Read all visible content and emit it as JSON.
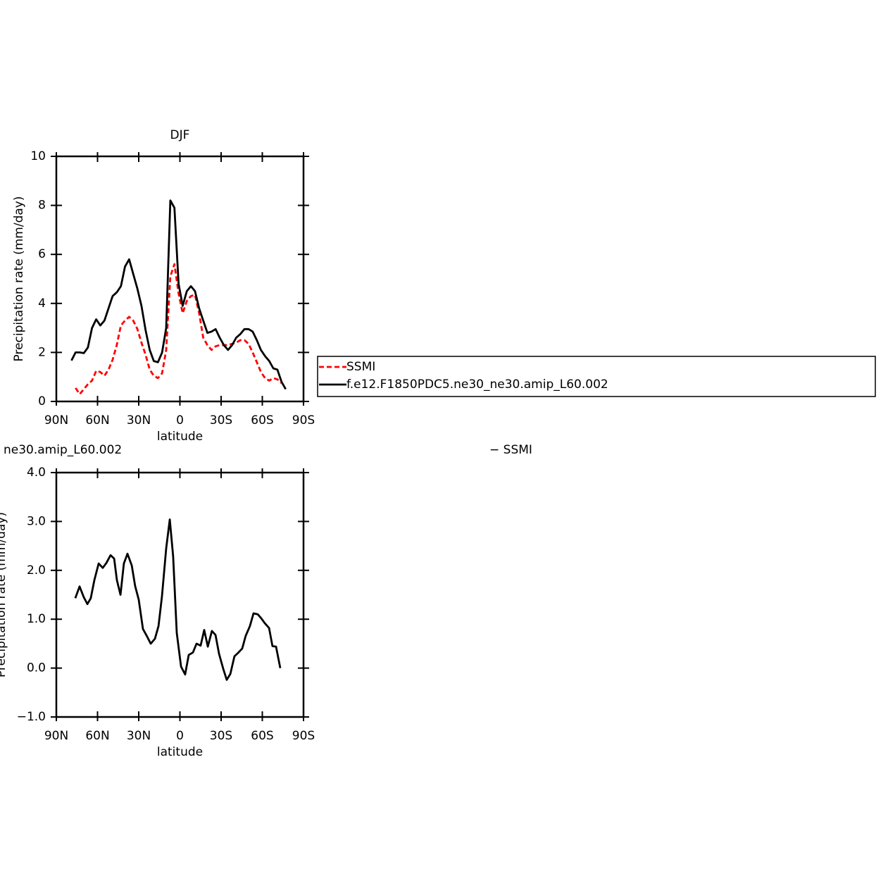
{
  "chart_data": [
    {
      "type": "line",
      "title": "DJF",
      "x_label": "latitude",
      "y_label": "Precipitation rate (mm/day)",
      "xlim": [
        90,
        -90
      ],
      "xticks": [
        {
          "value": 90,
          "label": "90N"
        },
        {
          "value": 60,
          "label": "60N"
        },
        {
          "value": 30,
          "label": "30N"
        },
        0,
        {
          "value": -30,
          "label": "30S"
        },
        {
          "value": -60,
          "label": "60S"
        },
        {
          "value": -90,
          "label": "90S"
        }
      ],
      "ylim": [
        0,
        10
      ],
      "yticks": [
        0,
        2,
        4,
        6,
        8,
        10
      ],
      "x": [
        79,
        76,
        73,
        70,
        67,
        64,
        61,
        58,
        55,
        52,
        49,
        46,
        43,
        40,
        37,
        34,
        31,
        28,
        25,
        22,
        19,
        16,
        13,
        10,
        7,
        4,
        1,
        -2,
        -5,
        -8,
        -11,
        -14,
        -17,
        -20,
        -23,
        -26,
        -29,
        -32,
        -35,
        -38,
        -41,
        -44,
        -47,
        -50,
        -53,
        -56,
        -59,
        -62,
        -65,
        -68,
        -71,
        -74,
        -77
      ],
      "series": [
        {
          "name": "SSMI",
          "color": "#ff0000",
          "dash": "dashed",
          "values": [
            null,
            0.55,
            0.3,
            0.5,
            0.7,
            0.85,
            1.25,
            1.2,
            1.05,
            1.3,
            1.7,
            2.3,
            3.1,
            3.3,
            3.45,
            3.3,
            2.95,
            2.4,
            1.9,
            1.3,
            1.05,
            0.95,
            1.15,
            2.1,
            5.1,
            5.6,
            4.4,
            3.6,
            4.1,
            4.3,
            4.35,
            3.6,
            2.6,
            2.3,
            2.1,
            2.25,
            2.3,
            2.3,
            2.3,
            2.35,
            2.4,
            2.5,
            2.5,
            2.35,
            2.0,
            1.6,
            1.2,
            0.95,
            0.85,
            0.95,
            0.9,
            0.75,
            null
          ]
        },
        {
          "name": "f.e12.F1850PDC5.ne30_ne30.amip_L60.002",
          "color": "#000000",
          "dash": "solid",
          "values": [
            1.67,
            2.0,
            2.0,
            1.97,
            2.2,
            3.0,
            3.35,
            3.1,
            3.3,
            3.8,
            4.3,
            4.45,
            4.7,
            5.5,
            5.8,
            5.2,
            4.6,
            3.9,
            2.9,
            2.1,
            1.65,
            1.6,
            2.0,
            3.0,
            8.2,
            7.9,
            4.8,
            3.9,
            4.5,
            4.7,
            4.5,
            3.8,
            3.3,
            2.8,
            2.85,
            2.95,
            2.6,
            2.3,
            2.1,
            2.3,
            2.6,
            2.75,
            2.95,
            2.95,
            2.85,
            2.5,
            2.1,
            1.85,
            1.65,
            1.35,
            1.3,
            0.8,
            0.5
          ]
        }
      ],
      "legend": "right"
    },
    {
      "type": "line",
      "title_left": "ne30.amip_L60.002",
      "title_right": "− SSMI",
      "x_label": "latitude",
      "y_label": "Precipitation rate (mm/day)",
      "xlim": [
        90,
        -90
      ],
      "xticks": [
        {
          "value": 90,
          "label": "90N"
        },
        {
          "value": 60,
          "label": "60N"
        },
        {
          "value": 30,
          "label": "30N"
        },
        0,
        {
          "value": -30,
          "label": "30S"
        },
        {
          "value": -60,
          "label": "60S"
        },
        {
          "value": -90,
          "label": "90S"
        }
      ],
      "ylim": [
        -1,
        4
      ],
      "yticks": [
        {
          "value": -1,
          "label": "−1.0"
        },
        {
          "value": 0,
          "label": "0.0"
        },
        {
          "value": 1,
          "label": "1.0"
        },
        {
          "value": 2,
          "label": "2.0"
        },
        {
          "value": 3,
          "label": "3.0"
        },
        {
          "value": 4,
          "label": "4.0"
        }
      ],
      "x": [
        76.2,
        73.1,
        70.0,
        67.4,
        64.9,
        62.3,
        59.2,
        56.2,
        53.6,
        50.5,
        47.9,
        45.9,
        43.3,
        40.8,
        38.2,
        35.1,
        32.6,
        30.0,
        26.9,
        23.8,
        21.3,
        18.2,
        15.6,
        13.1,
        10.0,
        7.4,
        4.9,
        2.3,
        -0.8,
        -3.8,
        -6.4,
        -9.5,
        -12.1,
        -15.1,
        -17.7,
        -20.3,
        -23.3,
        -25.9,
        -28.5,
        -31.5,
        -34.1,
        -36.7,
        -39.7,
        -42.3,
        -45.4,
        -47.9,
        -51.0,
        -53.6,
        -56.7,
        -59.2,
        -61.8,
        -64.9,
        -67.4,
        -70.0,
        -73.1
      ],
      "series": [
        {
          "color": "#000000",
          "dash": "solid",
          "values": [
            1.43,
            1.67,
            1.45,
            1.31,
            1.43,
            1.8,
            2.14,
            2.05,
            2.15,
            2.31,
            2.24,
            1.8,
            1.5,
            2.14,
            2.34,
            2.1,
            1.68,
            1.4,
            0.8,
            0.64,
            0.5,
            0.6,
            0.86,
            1.47,
            2.45,
            3.04,
            2.28,
            0.72,
            0.03,
            -0.13,
            0.27,
            0.32,
            0.5,
            0.46,
            0.78,
            0.44,
            0.76,
            0.68,
            0.29,
            -0.01,
            -0.24,
            -0.12,
            0.24,
            0.31,
            0.4,
            0.66,
            0.86,
            1.12,
            1.1,
            1.02,
            0.92,
            0.82,
            0.45,
            0.44,
            0.0
          ]
        }
      ]
    }
  ]
}
